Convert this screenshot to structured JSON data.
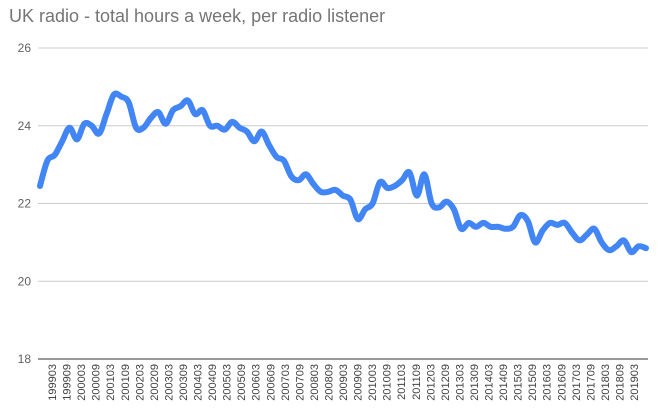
{
  "chart_data": {
    "type": "line",
    "title": "UK radio - total hours a week, per radio listener",
    "xlabel": "",
    "ylabel": "",
    "ylim": [
      18,
      26
    ],
    "y_ticks": [
      18,
      20,
      22,
      24,
      26
    ],
    "grid": true,
    "legend": "none",
    "colors": {
      "series": "#4285f4",
      "grid": "#cccccc",
      "text": "#616161"
    },
    "x_tick_labels": [
      "199903",
      "199909",
      "200003",
      "200009",
      "200103",
      "200109",
      "200203",
      "200209",
      "200303",
      "200309",
      "200403",
      "200409",
      "200503",
      "200509",
      "200603",
      "200609",
      "200703",
      "200709",
      "200803",
      "200809",
      "200903",
      "200909",
      "201003",
      "201009",
      "201103",
      "201109",
      "201203",
      "201209",
      "201303",
      "201309",
      "201403",
      "201409",
      "201503",
      "201509",
      "201603",
      "201609",
      "201703",
      "201709",
      "201803",
      "201809",
      "201903"
    ],
    "series": [
      {
        "values": [
          22.45,
          23.1,
          23.25,
          23.6,
          23.95,
          23.65,
          24.05,
          24.0,
          23.8,
          24.3,
          24.8,
          24.75,
          24.6,
          23.95,
          23.95,
          24.2,
          24.35,
          24.05,
          24.4,
          24.5,
          24.65,
          24.3,
          24.4,
          24.0,
          24.0,
          23.9,
          24.1,
          23.95,
          23.85,
          23.6,
          23.85,
          23.5,
          23.2,
          23.1,
          22.7,
          22.6,
          22.75,
          22.5,
          22.3,
          22.3,
          22.35,
          22.2,
          22.1,
          21.6,
          21.85,
          22.0,
          22.55,
          22.4,
          22.45,
          22.6,
          22.8,
          22.2,
          22.75,
          22.0,
          21.9,
          22.05,
          21.85,
          21.35,
          21.5,
          21.4,
          21.5,
          21.4,
          21.4,
          21.35,
          21.4,
          21.7,
          21.55,
          21.0,
          21.3,
          21.5,
          21.45,
          21.5,
          21.25,
          21.05,
          21.2,
          21.35,
          21.0,
          20.8,
          20.9,
          21.05,
          20.75,
          20.9,
          20.85
        ]
      }
    ]
  }
}
